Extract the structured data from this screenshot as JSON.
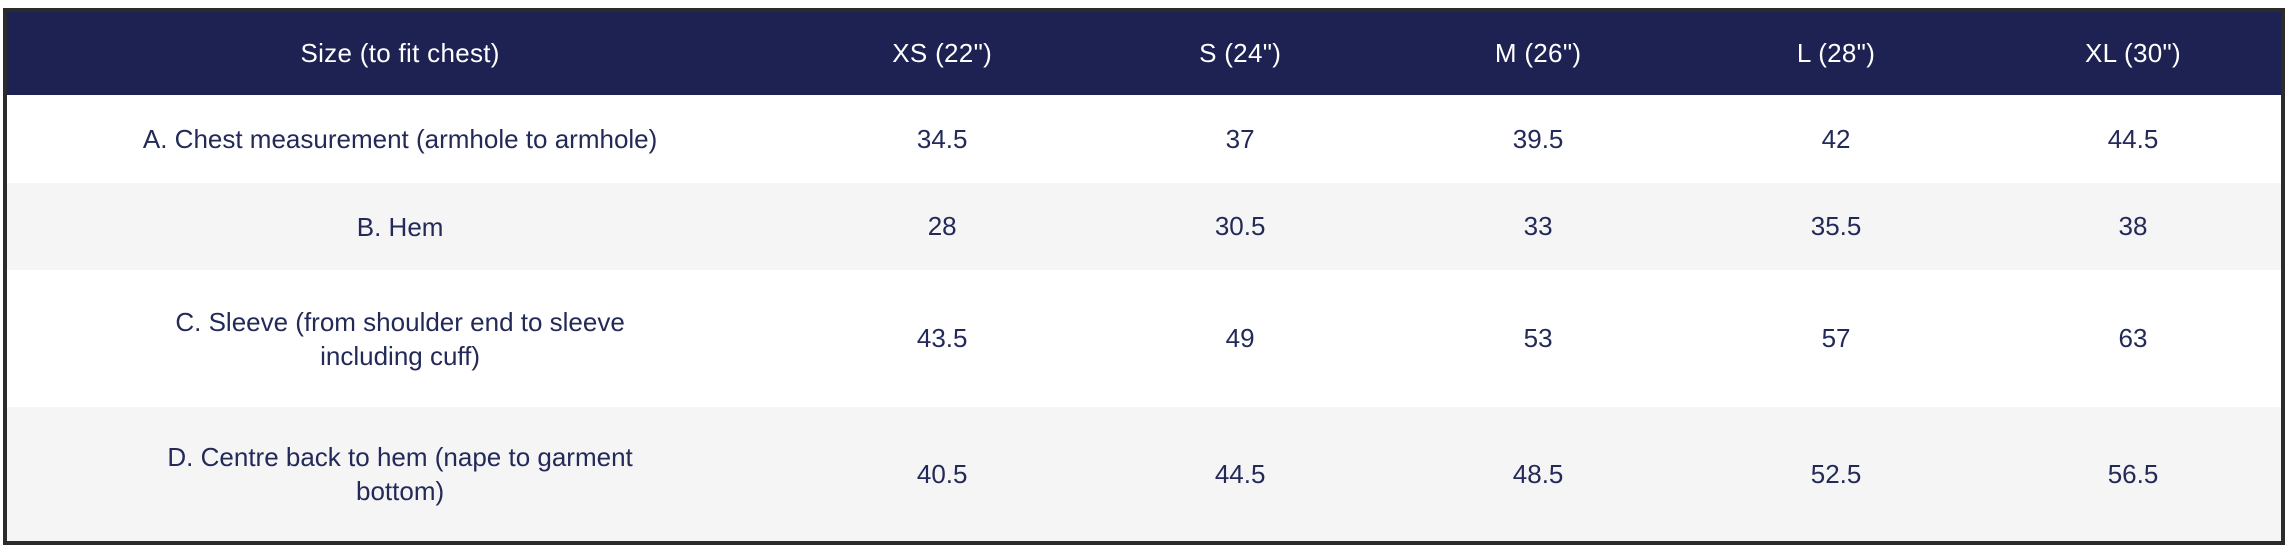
{
  "chart_data": {
    "type": "table",
    "columns": [
      "Size (to fit chest)",
      "XS (22\")",
      "S (24\")",
      "M (26\")",
      "L (28\")",
      "XL (30\")"
    ],
    "rows": [
      {
        "label": "A. Chest measurement (armhole to armhole)",
        "values": [
          "34.5",
          "37",
          "39.5",
          "42",
          "44.5"
        ]
      },
      {
        "label": "B. Hem",
        "values": [
          "28",
          "30.5",
          "33",
          "35.5",
          "38"
        ]
      },
      {
        "label": "C. Sleeve (from shoulder end to sleeve including cuff)",
        "values": [
          "43.5",
          "49",
          "53",
          "57",
          "63"
        ]
      },
      {
        "label": "D. Centre back to hem (nape to garment bottom)",
        "values": [
          "40.5",
          "44.5",
          "48.5",
          "52.5",
          "56.5"
        ]
      }
    ],
    "layout": {
      "zebra_striping": true,
      "alignment": "center"
    }
  },
  "colors": {
    "header_bg": "#1d2252",
    "header_text": "#ffffff",
    "body_text": "#232a58",
    "zebra_row_bg": "#f5f5f5",
    "plain_row_bg": "#ffffff",
    "outer_border": "#2b2b2b"
  }
}
